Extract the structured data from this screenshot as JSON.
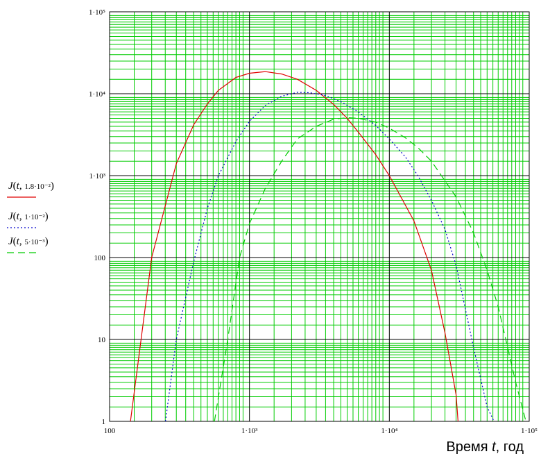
{
  "chart_data": {
    "type": "line",
    "x_scale": "log",
    "y_scale": "log",
    "xlim": [
      100,
      100000
    ],
    "ylim": [
      1,
      100000
    ],
    "xlabel_prefix": "Время ",
    "xlabel_var": "t",
    "xlabel_suffix": ", год",
    "ylabel": "",
    "grid": true,
    "grid_major_color": "#000000",
    "grid_minor_color": "#00cc00",
    "x_tick_labels": [
      {
        "value": 100,
        "label": "100"
      },
      {
        "value": 1000,
        "label": "1·10³"
      },
      {
        "value": 10000,
        "label": "1·10⁴"
      },
      {
        "value": 100000,
        "label": "1·10⁵"
      }
    ],
    "y_tick_labels": [
      {
        "value": 1,
        "label": "1"
      },
      {
        "value": 10,
        "label": "10"
      },
      {
        "value": 100,
        "label": "100"
      },
      {
        "value": 1000,
        "label": "1·10³"
      },
      {
        "value": 10000,
        "label": "1·10⁴"
      },
      {
        "value": 100000,
        "label": "1·10⁵"
      }
    ],
    "series": [
      {
        "name": "J(t, 1.8·10⁻²)",
        "legend_main": "J(t, ",
        "legend_arg": "1.8·10⁻²",
        "color": "#e00000",
        "dash": "solid",
        "x": [
          141,
          200,
          300,
          400,
          500,
          600,
          800,
          1000,
          1300,
          1700,
          2200,
          3000,
          4000,
          5000,
          6000,
          8000,
          10000,
          15000,
          20000,
          25000,
          30000,
          31000
        ],
        "y": [
          1,
          100,
          1400,
          4200,
          7500,
          11000,
          15800,
          17800,
          18600,
          17400,
          15000,
          11000,
          7400,
          5000,
          3400,
          1800,
          1000,
          280,
          70,
          12,
          2.1,
          1
        ]
      },
      {
        "name": "J(t, 1·10⁻²)",
        "legend_main": "J(t, ",
        "legend_arg": "1·10⁻²",
        "color": "#0000cc",
        "dash": "dotted",
        "x": [
          251,
          300,
          400,
          500,
          600,
          800,
          1000,
          1300,
          1700,
          2200,
          2700,
          3500,
          4500,
          6000,
          8000,
          10000,
          13000,
          16000,
          20000,
          25000,
          30000,
          40000,
          50000,
          56000
        ],
        "y": [
          1,
          10,
          90,
          400,
          1000,
          2600,
          4600,
          7200,
          9300,
          10400,
          10300,
          9500,
          8000,
          6000,
          4100,
          2800,
          1700,
          1000,
          500,
          220,
          80,
          8,
          1.5,
          1
        ]
      },
      {
        "name": "J(t, 5·10⁻³)",
        "legend_main": "J(t, ",
        "legend_arg": "5·10⁻³",
        "color": "#00cc00",
        "dash": "dashed",
        "x": [
          562,
          700,
          850,
          1000,
          1300,
          1700,
          2200,
          3000,
          4000,
          5000,
          6000,
          8000,
          10000,
          13000,
          16000,
          20000,
          30000,
          40000,
          50000,
          60000,
          80000,
          100000
        ],
        "y": [
          1,
          10,
          100,
          260,
          700,
          1500,
          2800,
          4000,
          4900,
          5100,
          5000,
          4500,
          3800,
          2900,
          2200,
          1500,
          550,
          200,
          70,
          25,
          3,
          0.7
        ]
      }
    ]
  }
}
